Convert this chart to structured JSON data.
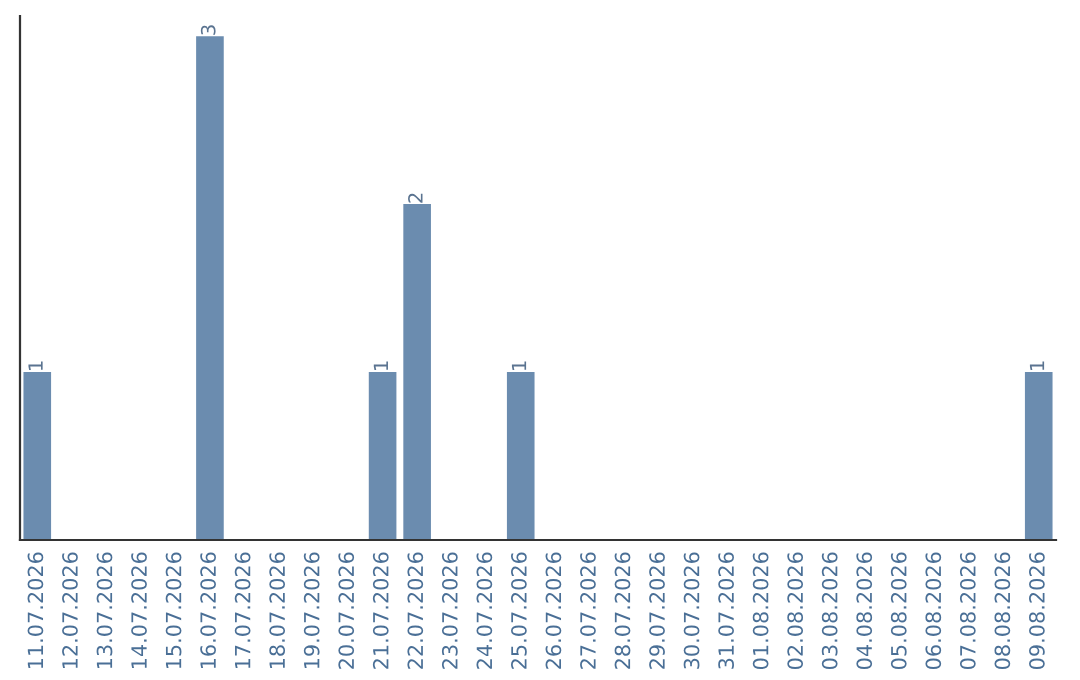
{
  "chart_data": {
    "type": "bar",
    "categories": [
      "11.07.2026",
      "12.07.2026",
      "13.07.2026",
      "14.07.2026",
      "15.07.2026",
      "16.07.2026",
      "17.07.2026",
      "18.07.2026",
      "19.07.2026",
      "20.07.2026",
      "21.07.2026",
      "22.07.2026",
      "23.07.2026",
      "24.07.2026",
      "25.07.2026",
      "26.07.2026",
      "27.07.2026",
      "28.07.2026",
      "29.07.2026",
      "30.07.2026",
      "31.07.2026",
      "01.08.2026",
      "02.08.2026",
      "03.08.2026",
      "04.08.2026",
      "05.08.2026",
      "06.08.2026",
      "07.08.2026",
      "08.08.2026",
      "09.08.2026"
    ],
    "values": [
      1,
      0,
      0,
      0,
      0,
      3,
      0,
      0,
      0,
      0,
      1,
      2,
      0,
      0,
      1,
      0,
      0,
      0,
      0,
      0,
      0,
      0,
      0,
      0,
      0,
      0,
      0,
      0,
      0,
      1
    ],
    "value_labels": [
      "1",
      null,
      null,
      null,
      null,
      "3",
      null,
      null,
      null,
      null,
      "1",
      "2",
      null,
      null,
      "1",
      null,
      null,
      null,
      null,
      null,
      null,
      null,
      null,
      null,
      null,
      null,
      null,
      null,
      null,
      "1"
    ],
    "color": "#6b8caf",
    "tick_labels": "x",
    "grid": false,
    "legend": false
  }
}
